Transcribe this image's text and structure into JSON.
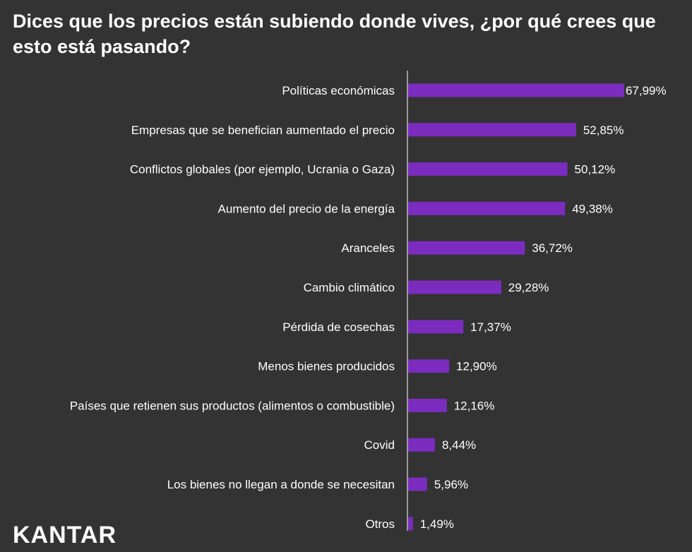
{
  "title": "Dices que los precios están subiendo donde vives, ¿por qué crees que esto está pasando?",
  "logo": "KANTAR",
  "colors": {
    "background": "#333333",
    "bar": "#7b2cbf",
    "text": "#ffffff",
    "axis": "#ffffff"
  },
  "chart_data": {
    "type": "bar",
    "orientation": "horizontal",
    "categories": [
      "Políticas económicas",
      "Empresas que se benefician aumentado el precio",
      "Conflictos globales (por ejemplo, Ucrania o Gaza)",
      "Aumento del precio de la energía",
      "Aranceles",
      "Cambio climático",
      "Pérdida de cosechas",
      "Menos bienes producidos",
      "Países que retienen sus productos (alimentos o combustible)",
      "Covid",
      "Los bienes no llegan a donde se necesitan",
      "Otros"
    ],
    "values": [
      67.99,
      52.85,
      50.12,
      49.38,
      36.72,
      29.28,
      17.37,
      12.9,
      12.16,
      8.44,
      5.96,
      1.49
    ],
    "value_labels": [
      "67,99%",
      "52,85%",
      "50,12%",
      "49,38%",
      "36,72%",
      "29,28%",
      "17,37%",
      "12,90%",
      "12,16%",
      "8,44%",
      "5,96%",
      "1,49%"
    ],
    "xlim": [
      0,
      100
    ],
    "grid": false,
    "legend": "none"
  }
}
